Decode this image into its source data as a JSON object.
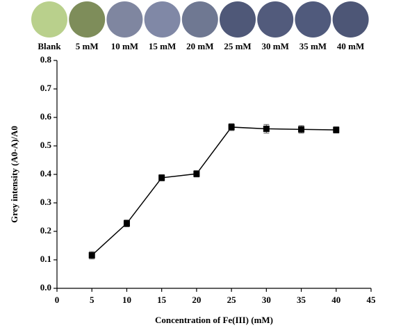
{
  "swatches": [
    {
      "label": "Blank",
      "color": "#b9d08c"
    },
    {
      "label": "5 mM",
      "color": "#7e8d5a"
    },
    {
      "label": "10 mM",
      "color": "#7f86a0"
    },
    {
      "label": "15 mM",
      "color": "#8088a6"
    },
    {
      "label": "20 mM",
      "color": "#6f7892"
    },
    {
      "label": "25 mM",
      "color": "#4f5878"
    },
    {
      "label": "30 mM",
      "color": "#525b7c"
    },
    {
      "label": "35 mM",
      "color": "#505a7c"
    },
    {
      "label": "40 mM",
      "color": "#4d5676"
    }
  ],
  "chart_data": {
    "type": "line",
    "x_label": "Concentration of Fe(III) (mM)",
    "y_label": "Grey intensity (A0-A)/A0",
    "x": [
      5,
      10,
      15,
      20,
      25,
      30,
      35,
      40
    ],
    "series": [
      {
        "color": "#000000",
        "values": [
          0.116,
          0.228,
          0.388,
          0.402,
          0.566,
          0.56,
          0.558,
          0.556
        ],
        "errors": [
          0.013,
          0.012,
          0.011,
          0.011,
          0.012,
          0.015,
          0.013,
          0.011
        ]
      }
    ],
    "xlim": [
      0,
      45
    ],
    "xticks": [
      0,
      5,
      10,
      15,
      20,
      25,
      30,
      35,
      40,
      45
    ],
    "ylim": [
      0,
      0.8
    ],
    "yticks": [
      {
        "value": 0,
        "label": "0.0"
      },
      0.1,
      0.2,
      0.3,
      0.4,
      0.5,
      0.6,
      0.7,
      0.8
    ]
  }
}
